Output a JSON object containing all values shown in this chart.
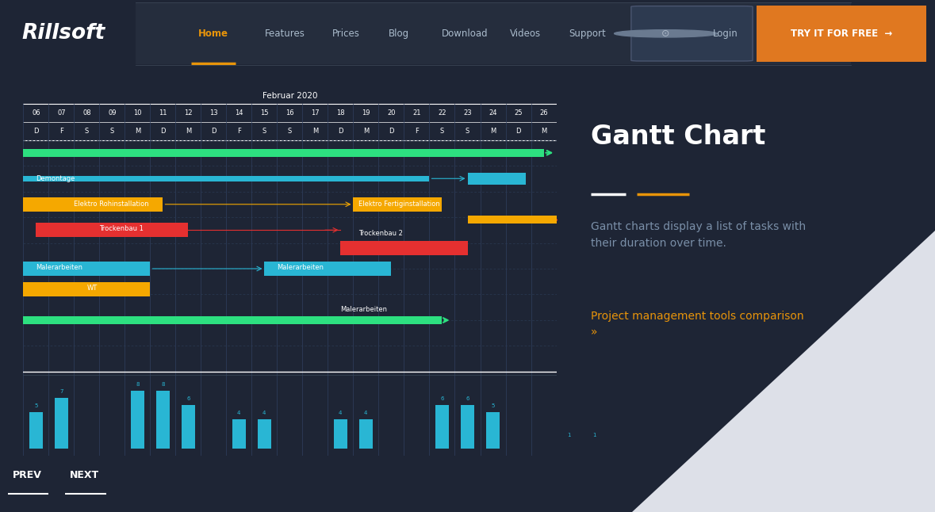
{
  "bg_color": "#1e2535",
  "nav_bg": "#252d3d",
  "nav_separator": "#3a4555",
  "nav_text_color": "#aabbcc",
  "nav_active_color": "#e8940a",
  "try_btn_color": "#e07820",
  "logo_color": "#ffffff",
  "nav_items": [
    "Home",
    "Features",
    "Prices",
    "Blog",
    "Download",
    "Videos",
    "Support"
  ],
  "chart_title": "Februar 2020",
  "days": [
    "06",
    "07",
    "08",
    "09",
    "10",
    "11",
    "12",
    "13",
    "14",
    "15",
    "16",
    "17",
    "18",
    "19",
    "20",
    "21",
    "22",
    "23",
    "24",
    "25",
    "26"
  ],
  "day_letters": [
    "D",
    "F",
    "S",
    "S",
    "M",
    "D",
    "M",
    "D",
    "F",
    "S",
    "S",
    "M",
    "D",
    "M",
    "D",
    "F",
    "S",
    "S",
    "M",
    "D",
    "M"
  ],
  "gantt_bg": "#1a2232",
  "bar_cyan": "#29b6d4",
  "bar_green": "#2de080",
  "bar_yellow": "#f5a800",
  "bar_red": "#e53030",
  "text_white": "#ffffff",
  "text_gray": "#7a8fa8",
  "text_orange": "#e8940a",
  "right_title": "Gantt Chart",
  "right_subtitle": "Gantt charts display a list of tasks with\ntheir duration over time.",
  "right_link": "Project management tools comparison\n»",
  "histogram": [
    5,
    7,
    0,
    0,
    8,
    8,
    6,
    0,
    4,
    4,
    0,
    0,
    4,
    4,
    0,
    0,
    6,
    6,
    5,
    0,
    0,
    1,
    1
  ],
  "hist_color": "#29b6d4",
  "prev_text": "PREV",
  "next_text": "NEXT"
}
